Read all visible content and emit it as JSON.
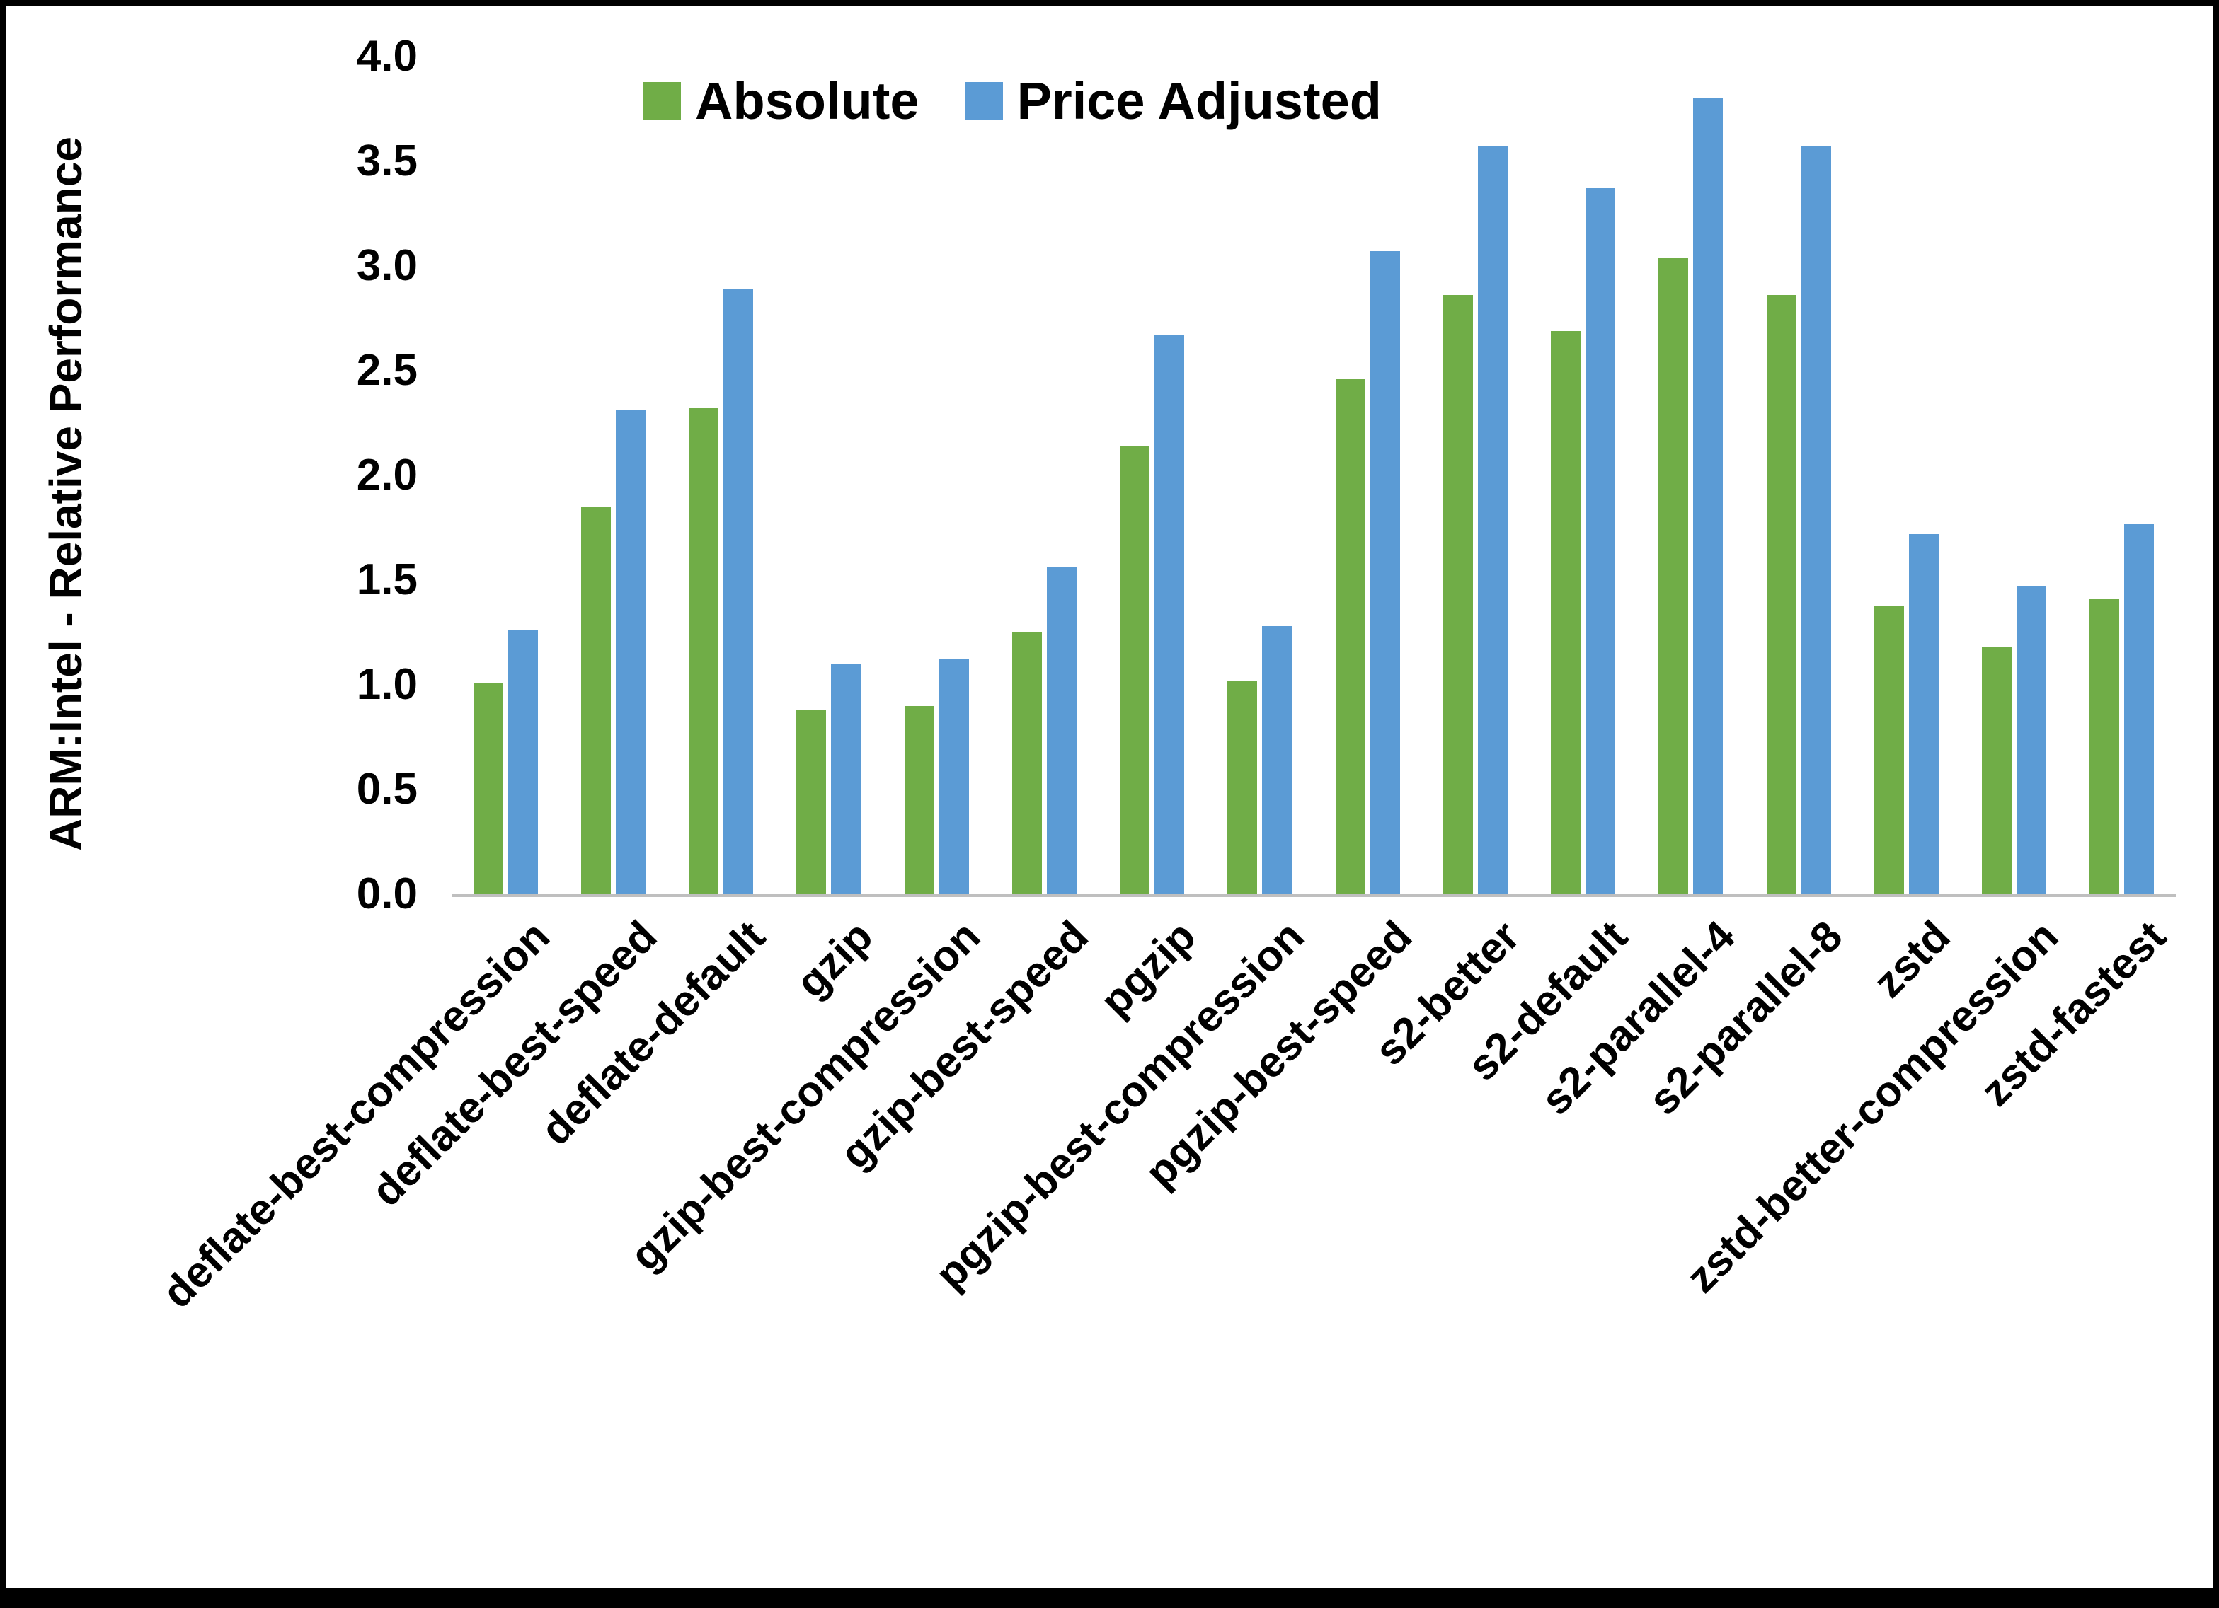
{
  "chart_data": {
    "type": "bar",
    "title": "",
    "ylabel": "ARM:Intel - Relative Performance",
    "xlabel": "",
    "ylim": [
      0,
      4
    ],
    "ytick_step": 0.5,
    "ytick_decimals": 1,
    "grid": false,
    "legend_position": "top",
    "categories": [
      "deflate-best-compression",
      "deflate-best-speed",
      "deflate-default",
      "gzip",
      "gzip-best-compression",
      "gzip-best-speed",
      "pgzip",
      "pgzip-best-compression",
      "pgzip-best-speed",
      "s2-better",
      "s2-default",
      "s2-parallel-4",
      "s2-parallel-8",
      "zstd",
      "zstd-better-compression",
      "zstd-fastest"
    ],
    "series": [
      {
        "name": "Absolute",
        "color": "#70AD47",
        "values": [
          1.01,
          1.85,
          2.32,
          0.88,
          0.9,
          1.25,
          2.14,
          1.02,
          2.46,
          2.86,
          2.69,
          3.04,
          2.86,
          1.38,
          1.18,
          1.41
        ]
      },
      {
        "name": "Price Adjusted",
        "color": "#5B9BD5",
        "values": [
          1.26,
          2.31,
          2.89,
          1.1,
          1.12,
          1.56,
          2.67,
          1.28,
          3.07,
          3.57,
          3.37,
          3.8,
          3.57,
          1.72,
          1.47,
          1.77
        ]
      }
    ],
    "colors": {
      "axis_line": "#BFBFBF",
      "text": "#000000",
      "background": "#FFFFFF",
      "frame": "#000000"
    }
  }
}
